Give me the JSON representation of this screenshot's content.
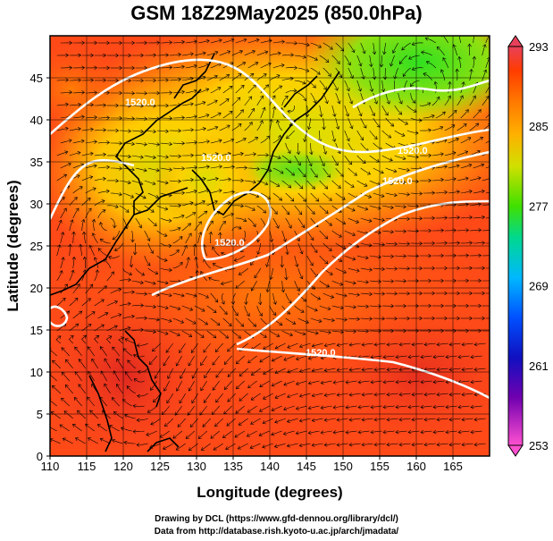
{
  "title": "GSM 18Z29May2025 (850.0hPa)",
  "x_axis": {
    "label": "Longitude (degrees)",
    "ticks": [
      "110",
      "115",
      "120",
      "125",
      "130",
      "135",
      "140",
      "145",
      "150",
      "155",
      "160",
      "165"
    ]
  },
  "y_axis": {
    "label": "Latitude (degrees)",
    "ticks": [
      "0",
      "5",
      "10",
      "15",
      "20",
      "25",
      "30",
      "35",
      "40",
      "45"
    ]
  },
  "colorbar": {
    "ticks": [
      "293",
      "285",
      "277",
      "269",
      "261",
      "253"
    ],
    "colors": [
      "#e8405a",
      "#ff3f00",
      "#ff8000",
      "#ffb000",
      "#c8e000",
      "#40e000",
      "#00e000",
      "#00d8a0",
      "#00c0ff",
      "#0060ff",
      "#0010d0",
      "#2000a0",
      "#8000b0",
      "#e000c0",
      "#ff60d0"
    ]
  },
  "contour_labels": [
    "1520.0",
    "1520.0",
    "1520.0",
    "1520.0",
    "1520.0",
    "1520.0"
  ],
  "credits": {
    "line1": "Drawing by DCL (https://www.gfd-dennou.org/library/dcl/)",
    "line2": "Data from http://database.rish.kyoto-u.ac.jp/arch/jmadata/"
  },
  "colors": {
    "warm": "#ff4a1a",
    "hot": "#ee2a20",
    "mid": "#ff9a10",
    "cool": "#b8e000",
    "cold": "#30e020",
    "contour": "#ffffff",
    "land": "#000000"
  }
}
